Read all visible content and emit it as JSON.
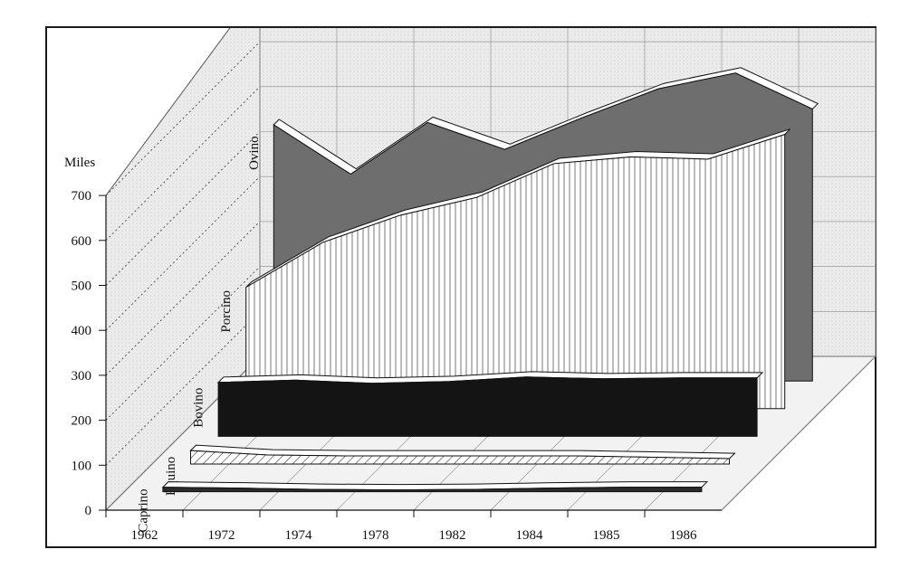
{
  "chart_data": {
    "type": "area",
    "title": "",
    "xlabel": "",
    "ylabel": "",
    "unit_label": "Miles",
    "categories": [
      "1962",
      "1972",
      "1974",
      "1978",
      "1982",
      "1984",
      "1985",
      "1986"
    ],
    "ylim": [
      0,
      700
    ],
    "yticks": [
      0,
      100,
      200,
      300,
      400,
      500,
      600,
      700
    ],
    "style": "3d-ribbons",
    "grid": true,
    "series": [
      {
        "name": "Caprino",
        "color": "#2b2b2b",
        "values": [
          10,
          8,
          5,
          4,
          5,
          8,
          10,
          10
        ]
      },
      {
        "name": "Equino",
        "color": "#ffffff",
        "values": [
          30,
          20,
          18,
          18,
          18,
          18,
          15,
          12
        ]
      },
      {
        "name": "Bovino",
        "color": "#141414",
        "values": [
          120,
          125,
          118,
          122,
          132,
          128,
          130,
          130
        ]
      },
      {
        "name": "Porcino",
        "color": "#ffffff",
        "values": [
          270,
          370,
          430,
          470,
          545,
          560,
          555,
          610
        ]
      },
      {
        "name": "Ovino",
        "color": "#6e6e6e",
        "values": [
          570,
          460,
          575,
          515,
          585,
          650,
          685,
          605
        ]
      }
    ]
  }
}
